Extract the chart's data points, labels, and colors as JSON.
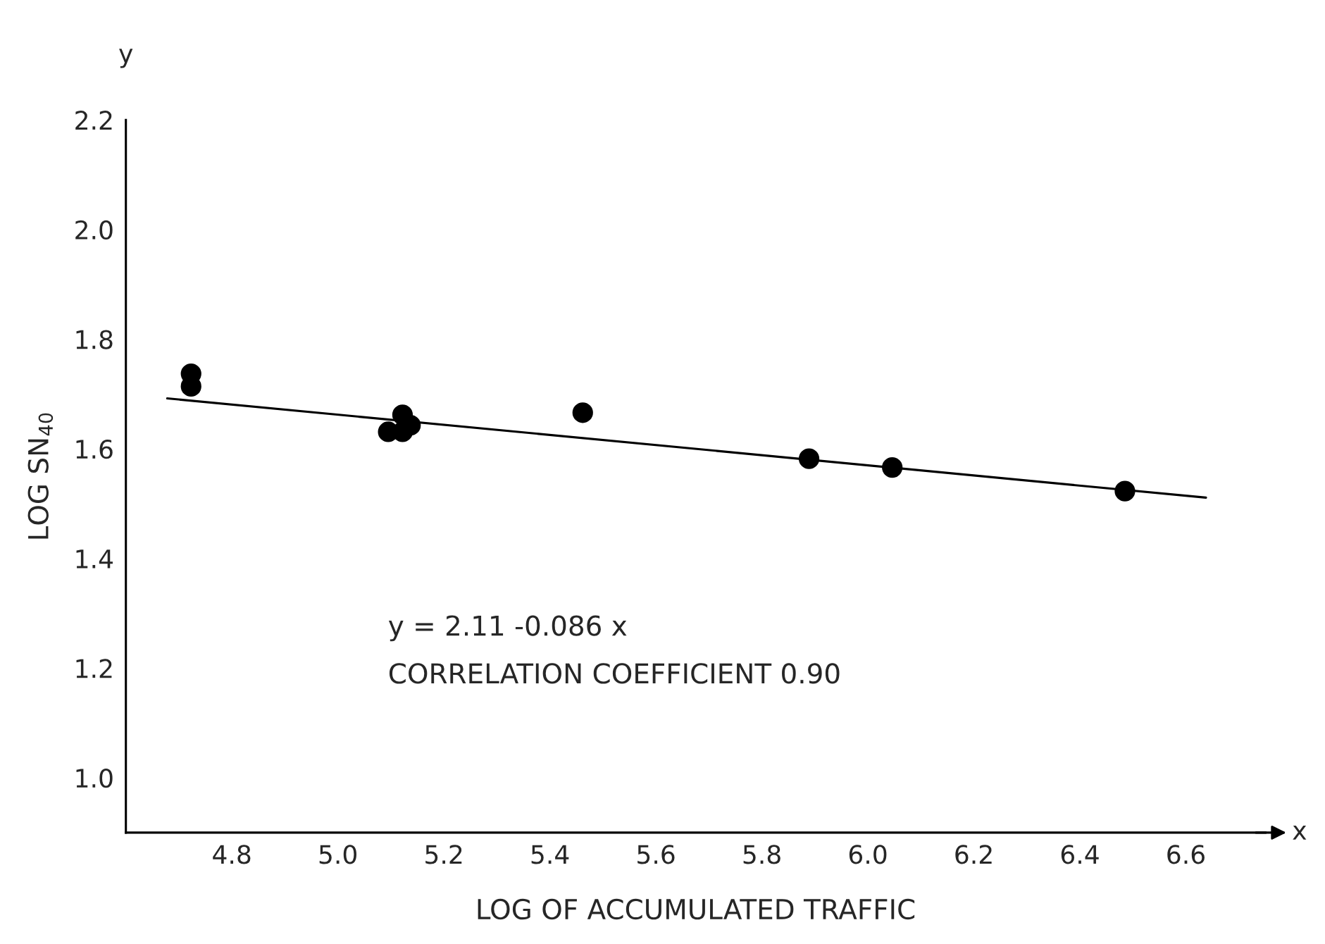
{
  "chart_data": {
    "type": "scatter",
    "xlabel": "LOG OF ACCUMULATED TRAFFIC",
    "ylabel": "LOG SN$_{40}$",
    "series": [
      {
        "color": "#000000",
        "marker": "circle",
        "x": [
          4.723,
          4.723,
          5.095,
          5.122,
          5.122,
          5.137,
          5.462,
          5.889,
          6.046,
          6.485
        ],
        "values": [
          1.737,
          1.714,
          1.631,
          1.662,
          1.631,
          1.643,
          1.666,
          1.582,
          1.566,
          1.523
        ]
      },
      {
        "type": "line",
        "color": "#000000",
        "x": [
          4.678,
          6.638
        ],
        "values": [
          1.692,
          1.511
        ]
      }
    ],
    "xlim": [
      4.6,
      6.75
    ],
    "ylim": [
      0.9,
      2.2
    ],
    "xticks": [
      4.8,
      {
        "value": 5.0,
        "label": "5.0"
      },
      5.2,
      5.4,
      5.6,
      5.8,
      {
        "value": 6.0,
        "label": "6.0"
      },
      6.2,
      6.4,
      6.6
    ],
    "yticks": [
      {
        "value": 1.0,
        "label": "1.0"
      },
      1.2,
      1.4,
      1.6,
      1.8,
      {
        "value": 2.0,
        "label": "2.0"
      },
      2.2
    ],
    "grid": false,
    "legend": false,
    "annotations": [
      "y = 2.11 -0.086 x",
      "CORRELATION COEFFICIENT 0.90",
      "y",
      "x"
    ]
  }
}
